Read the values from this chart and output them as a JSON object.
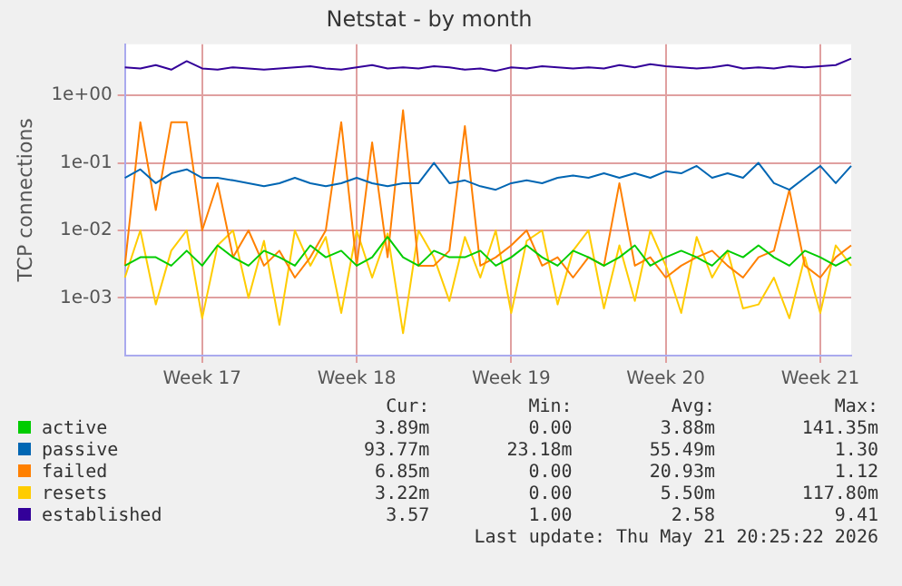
{
  "chart_data": {
    "type": "line",
    "title": "Netstat - by month",
    "ylabel": "TCP connections",
    "log": "y",
    "grid": true,
    "legend": "bottom",
    "marker": "none",
    "line_style": "solid",
    "categories": [
      null,
      null,
      null,
      null,
      null,
      "Week 17",
      null,
      null,
      null,
      null,
      null,
      null,
      null,
      null,
      null,
      "Week 18",
      null,
      null,
      null,
      null,
      null,
      null,
      null,
      null,
      null,
      "Week 19",
      null,
      null,
      null,
      null,
      null,
      null,
      null,
      null,
      null,
      "Week 20",
      null,
      null,
      null,
      null,
      null,
      null,
      null,
      null,
      null,
      "Week 21",
      null,
      null
    ],
    "ylim": [
      0.00014,
      5.7
    ],
    "yticks": [
      {
        "value": 0.001,
        "label": "1e-03"
      },
      {
        "value": 0.01,
        "label": "1e-02"
      },
      {
        "value": 0.1,
        "label": "1e-01"
      },
      {
        "value": 1,
        "label": "1e+00"
      }
    ],
    "series": [
      {
        "name": "active",
        "color": "#00cc00",
        "values": [
          0.003,
          0.004,
          0.004,
          0.003,
          0.005,
          0.003,
          0.006,
          0.004,
          0.003,
          0.005,
          0.004,
          0.003,
          0.006,
          0.004,
          0.005,
          0.003,
          0.004,
          0.008,
          0.004,
          0.003,
          0.005,
          0.004,
          0.004,
          0.005,
          0.003,
          0.004,
          0.006,
          0.004,
          0.003,
          0.005,
          0.004,
          0.003,
          0.004,
          0.006,
          0.003,
          0.004,
          0.005,
          0.004,
          0.003,
          0.005,
          0.004,
          0.006,
          0.004,
          0.003,
          0.005,
          0.004,
          0.003,
          0.004
        ]
      },
      {
        "name": "passive",
        "color": "#0066b3",
        "values": [
          0.06,
          0.08,
          0.05,
          0.07,
          0.08,
          0.06,
          0.06,
          0.055,
          0.05,
          0.045,
          0.05,
          0.06,
          0.05,
          0.045,
          0.05,
          0.06,
          0.05,
          0.045,
          0.05,
          0.05,
          0.1,
          0.05,
          0.055,
          0.045,
          0.04,
          0.05,
          0.055,
          0.05,
          0.06,
          0.065,
          0.06,
          0.07,
          0.06,
          0.07,
          0.06,
          0.075,
          0.07,
          0.09,
          0.06,
          0.07,
          0.06,
          0.1,
          0.05,
          0.04,
          0.06,
          0.09,
          0.05,
          0.09
        ]
      },
      {
        "name": "failed",
        "color": "#ff8000",
        "values": [
          0.003,
          0.4,
          0.02,
          0.4,
          0.4,
          0.01,
          0.05,
          0.004,
          0.01,
          0.003,
          0.005,
          0.002,
          0.004,
          0.01,
          0.4,
          0.003,
          0.2,
          0.004,
          0.6,
          0.003,
          0.003,
          0.005,
          0.35,
          0.003,
          0.004,
          0.006,
          0.01,
          0.003,
          0.004,
          0.002,
          0.004,
          0.003,
          0.05,
          0.003,
          0.004,
          0.002,
          0.003,
          0.004,
          0.005,
          0.003,
          0.002,
          0.004,
          0.005,
          0.04,
          0.003,
          0.002,
          0.004,
          0.006
        ]
      },
      {
        "name": "resets",
        "color": "#ffcc00",
        "values": [
          0.002,
          0.01,
          0.0008,
          0.005,
          0.01,
          0.0005,
          0.006,
          0.01,
          0.001,
          0.007,
          0.0004,
          0.01,
          0.003,
          0.008,
          0.0006,
          0.01,
          0.002,
          0.009,
          0.0003,
          0.01,
          0.004,
          0.0009,
          0.008,
          0.002,
          0.01,
          0.0006,
          0.007,
          0.01,
          0.0008,
          0.005,
          0.01,
          0.0007,
          0.006,
          0.0009,
          0.01,
          0.003,
          0.0006,
          0.008,
          0.002,
          0.005,
          0.0007,
          0.0008,
          0.002,
          0.0005,
          0.004,
          0.0006,
          0.006,
          0.003
        ]
      },
      {
        "name": "established",
        "color": "#330099",
        "values": [
          2.6,
          2.5,
          2.8,
          2.4,
          3.2,
          2.5,
          2.4,
          2.6,
          2.5,
          2.4,
          2.5,
          2.6,
          2.7,
          2.5,
          2.4,
          2.6,
          2.8,
          2.5,
          2.6,
          2.5,
          2.7,
          2.6,
          2.4,
          2.5,
          2.3,
          2.6,
          2.5,
          2.7,
          2.6,
          2.5,
          2.6,
          2.5,
          2.8,
          2.6,
          2.9,
          2.7,
          2.6,
          2.5,
          2.6,
          2.8,
          2.5,
          2.6,
          2.5,
          2.7,
          2.6,
          2.7,
          2.8,
          3.5
        ]
      }
    ],
    "annotations": [
      "Cur:",
      "Min:",
      "Avg:",
      "Max:",
      "3.89m",
      "0.00",
      "3.88m",
      "141.35m",
      "93.77m",
      "23.18m",
      "55.49m",
      "1.30",
      "6.85m",
      "0.00",
      "20.93m",
      "1.12",
      "3.22m",
      "0.00",
      "5.50m",
      "117.80m",
      "3.57",
      "1.00",
      "2.58",
      "9.41",
      "Last update: Thu May 21 20:25:22 2026"
    ]
  }
}
